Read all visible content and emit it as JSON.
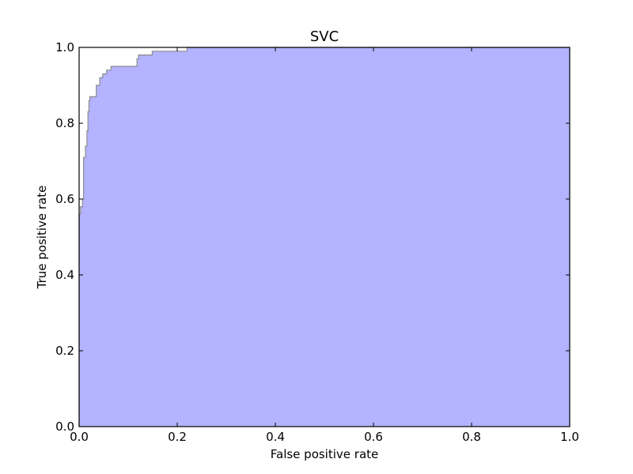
{
  "chart_data": {
    "type": "area",
    "title": "SVC",
    "xlabel": "False positive rate",
    "ylabel": "True positive rate",
    "xlim": [
      0.0,
      1.0
    ],
    "ylim": [
      0.0,
      1.0
    ],
    "x_ticks": [
      "0.0",
      "0.2",
      "0.4",
      "0.6",
      "0.8",
      "1.0"
    ],
    "y_ticks": [
      "0.0",
      "0.2",
      "0.4",
      "0.6",
      "0.8",
      "1.0"
    ],
    "grid": false,
    "fill_color": "#b3b3ff",
    "line_color": "#8c8c8c",
    "series": [
      {
        "x": [
          0.0,
          0.0,
          0.003,
          0.003,
          0.007,
          0.007,
          0.009,
          0.009,
          0.013,
          0.013,
          0.016,
          0.016,
          0.018,
          0.018,
          0.02,
          0.02,
          0.022,
          0.022,
          0.024,
          0.024,
          0.035,
          0.035,
          0.042,
          0.042,
          0.048,
          0.048,
          0.056,
          0.056,
          0.065,
          0.065,
          0.118,
          0.118,
          0.121,
          0.121,
          0.149,
          0.149,
          0.22,
          0.22,
          1.0
        ],
        "y": [
          0.0,
          0.56,
          0.56,
          0.58,
          0.58,
          0.6,
          0.6,
          0.71,
          0.71,
          0.74,
          0.74,
          0.78,
          0.78,
          0.83,
          0.83,
          0.86,
          0.86,
          0.87,
          0.87,
          0.87,
          0.87,
          0.9,
          0.9,
          0.92,
          0.92,
          0.93,
          0.93,
          0.94,
          0.94,
          0.95,
          0.95,
          0.97,
          0.97,
          0.98,
          0.98,
          0.99,
          0.99,
          1.0,
          1.0
        ]
      }
    ]
  }
}
